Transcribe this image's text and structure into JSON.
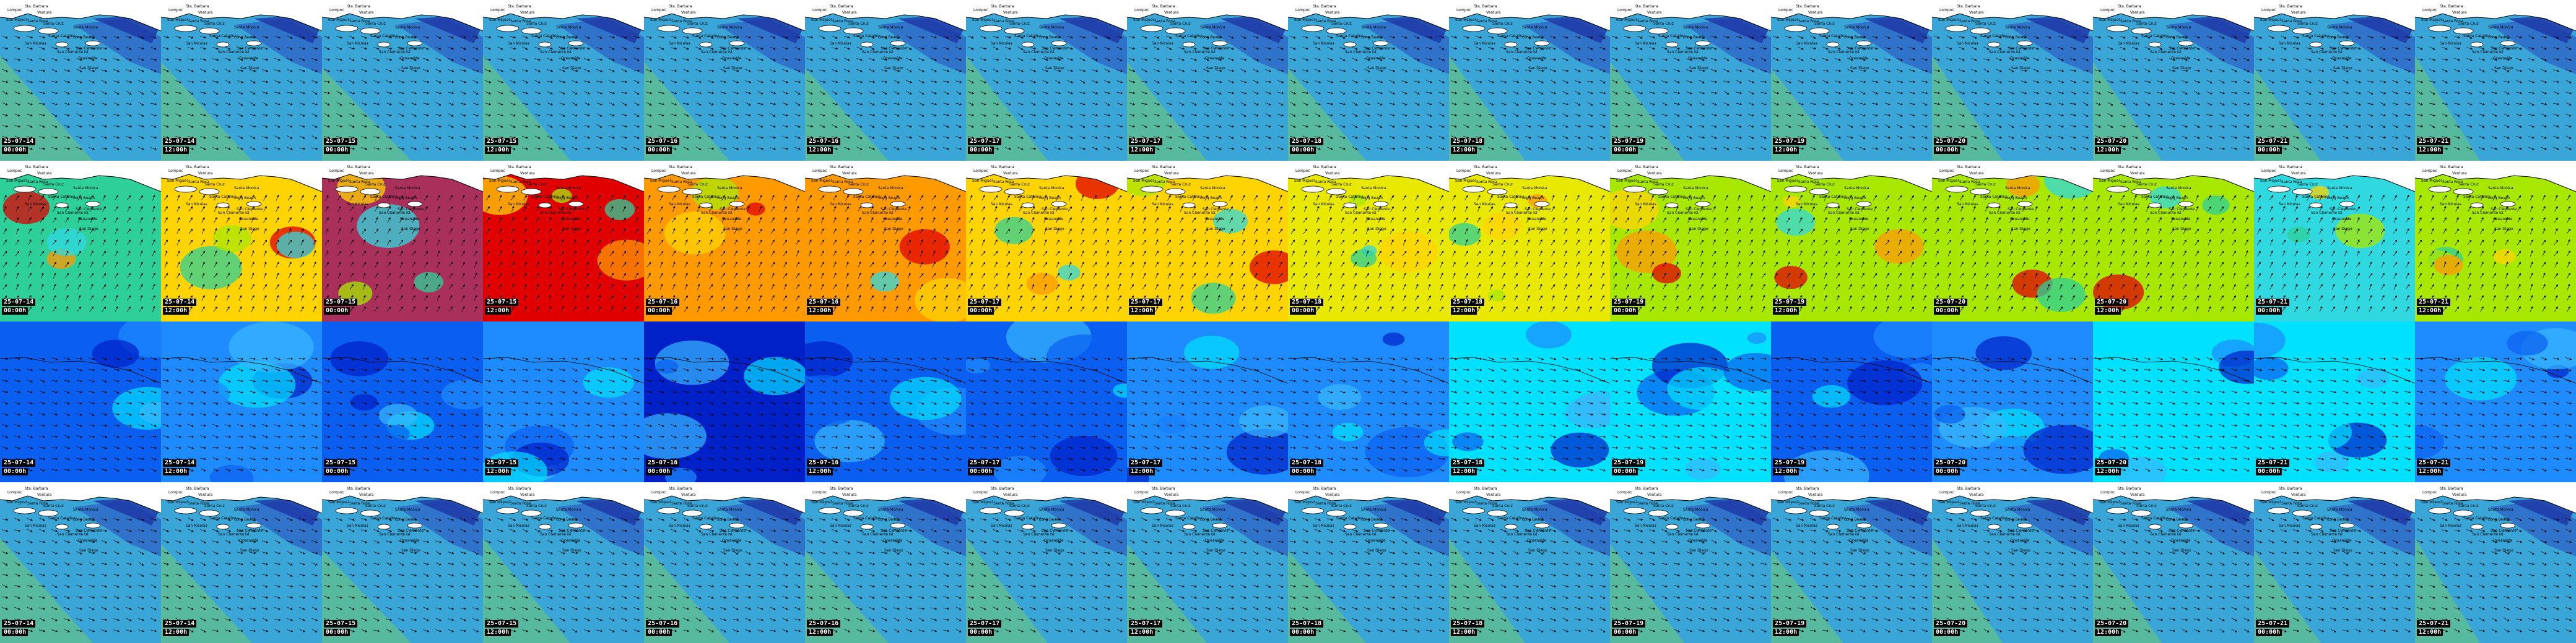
{
  "map_labels": {
    "coast_places": [
      "Lompoc",
      "Sta. Barbara",
      "Ventura",
      "Santa Monica",
      "Long Beach",
      "San Clemente",
      "Oceanside",
      "San Diego",
      "San Miguel",
      "Santa Rosa",
      "Santa Cruz",
      "Santa Catalina",
      "San Nicolas",
      "San Clemente Isl."
    ]
  },
  "rows": [
    {
      "id": "swell-height",
      "palette": "blue-green"
    },
    {
      "id": "sea-temperature",
      "palette": "warm"
    },
    {
      "id": "wave-period",
      "palette": "deep-blue"
    },
    {
      "id": "wind-wave-height",
      "palette": "blue-green"
    }
  ],
  "frames": [
    {
      "date": "25-07-14",
      "time": "00:00h"
    },
    {
      "date": "25-07-14",
      "time": "12:00h"
    },
    {
      "date": "25-07-15",
      "time": "00:00h"
    },
    {
      "date": "25-07-15",
      "time": "12:00h"
    },
    {
      "date": "25-07-16",
      "time": "00:00h"
    },
    {
      "date": "25-07-16",
      "time": "12:00h"
    },
    {
      "date": "25-07-17",
      "time": "00:00h"
    },
    {
      "date": "25-07-17",
      "time": "12:00h"
    },
    {
      "date": "25-07-18",
      "time": "00:00h"
    },
    {
      "date": "25-07-18",
      "time": "12:00h"
    },
    {
      "date": "25-07-19",
      "time": "00:00h"
    },
    {
      "date": "25-07-19",
      "time": "12:00h"
    },
    {
      "date": "25-07-20",
      "time": "00:00h"
    },
    {
      "date": "25-07-20",
      "time": "12:00h"
    },
    {
      "date": "25-07-21",
      "time": "00:00h"
    },
    {
      "date": "25-07-21",
      "time": "12:00h"
    }
  ],
  "palettes": {
    "blue-green": [
      "#3aa6d8",
      "#57b99e",
      "#2f6fc9",
      "#1e3aa8",
      "#4a9ad0"
    ],
    "warm": [
      "#ffd400",
      "#ff9a00",
      "#e8e800",
      "#a8e800",
      "#e00000",
      "#a8305a",
      "#30d8e0",
      "#2ed09a"
    ],
    "deep-blue": [
      "#0a5ff0",
      "#1e8cff",
      "#0020c8",
      "#00e0ff",
      "#38b8ff"
    ]
  },
  "colors": {
    "land": "#ffffff",
    "coast": "#000000",
    "stamp_bg": "#000000",
    "stamp_fg": "#ffffff",
    "arrow": "#000000"
  }
}
